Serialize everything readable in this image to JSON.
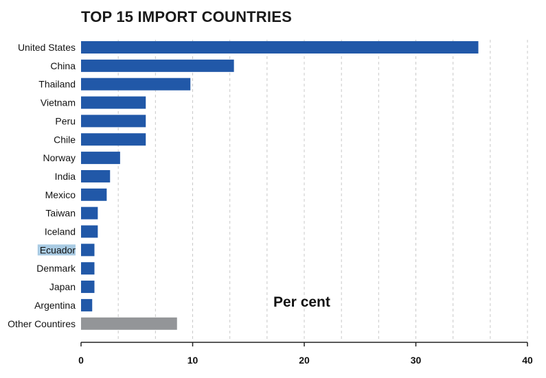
{
  "chart_data": {
    "type": "bar",
    "orientation": "horizontal",
    "title": "TOP 15 IMPORT COUNTRIES",
    "xlabel": "Per cent",
    "categories": [
      "United States",
      "China",
      "Thailand",
      "Vietnam",
      "Peru",
      "Chile",
      "Norway",
      "India",
      "Mexico",
      "Taiwan",
      "Iceland",
      "Ecuador",
      "Denmark",
      "Japan",
      "Argentina",
      "Other Countires"
    ],
    "values": [
      35.6,
      13.7,
      9.8,
      5.8,
      5.8,
      5.8,
      3.5,
      2.6,
      2.3,
      1.5,
      1.5,
      1.2,
      1.2,
      1.2,
      1.0,
      8.6
    ],
    "bar_colors": [
      "#2158a8",
      "#2158a8",
      "#2158a8",
      "#2158a8",
      "#2158a8",
      "#2158a8",
      "#2158a8",
      "#2158a8",
      "#2158a8",
      "#2158a8",
      "#2158a8",
      "#2158a8",
      "#2158a8",
      "#2158a8",
      "#2158a8",
      "#939598"
    ],
    "highlighted_category": "Ecuador",
    "highlight_color": "#a9cbe3",
    "xlim": [
      0,
      40
    ],
    "xticks": [
      0,
      10,
      20,
      30,
      40
    ],
    "grid": true,
    "grid_style": "dashed vertical"
  }
}
